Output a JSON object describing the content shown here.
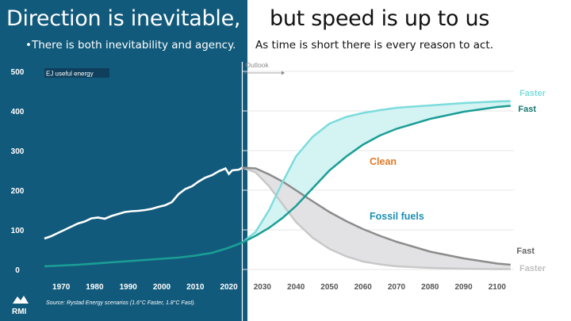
{
  "slide": {
    "title_left": "Direction is inevitable,",
    "title_right": "but speed is up to us",
    "subtitle_left": "•There is both inevitability and agency.",
    "subtitle_right": "As time is short there is every reason to act.",
    "source": "Source: Rystad Energy scenarios (1.6°C Faster, 1.8°C Fast).",
    "logo_text": "RMI"
  },
  "colors": {
    "panel": "#125a7b",
    "clean_fast": "#1a9e96",
    "clean_faster": "#7ddcdc",
    "clean_band": "#d4f3f3",
    "fossil_fast": "#8c8c8c",
    "fossil_faster": "#c8c8c8",
    "fossil_band": "#e2e2e4",
    "historical": "#ffffff",
    "label_clean": "#e07b29",
    "label_fossil": "#1e8fb4"
  },
  "chart_data": {
    "type": "line",
    "title": "",
    "ylabel": "EJ useful energy",
    "xlim": [
      1965,
      2105
    ],
    "ylim": [
      0,
      500
    ],
    "yticks": [
      0,
      100,
      200,
      300,
      400,
      500
    ],
    "xticks": [
      1970,
      1980,
      1990,
      2000,
      2010,
      2020,
      2030,
      2040,
      2050,
      2060,
      2070,
      2080,
      2090,
      2100
    ],
    "grid": true,
    "annotations": {
      "outlook": "Outlook",
      "clean": "Clean",
      "fossil_fuels": "Fossil fuels",
      "clean_faster": "Faster",
      "clean_fast": "Fast",
      "fossil_fast": "Fast",
      "fossil_faster": "Faster"
    },
    "historical_fossil": {
      "x": [
        1965,
        1967,
        1969,
        1971,
        1973,
        1975,
        1977,
        1979,
        1981,
        1983,
        1985,
        1987,
        1989,
        1991,
        1993,
        1995,
        1997,
        1999,
        2001,
        2003,
        2005,
        2007,
        2009,
        2011,
        2013,
        2015,
        2017,
        2019,
        2020,
        2021,
        2023,
        2024
      ],
      "y": [
        78,
        84,
        92,
        100,
        108,
        116,
        121,
        129,
        131,
        128,
        135,
        140,
        145,
        147,
        148,
        150,
        153,
        158,
        162,
        170,
        190,
        203,
        210,
        222,
        232,
        238,
        248,
        255,
        241,
        250,
        252,
        257
      ]
    },
    "historical_clean": {
      "x": [
        1965,
        1975,
        1985,
        1995,
        2005,
        2010,
        2015,
        2020,
        2024
      ],
      "y": [
        8,
        12,
        18,
        24,
        30,
        35,
        42,
        55,
        68
      ]
    },
    "series": [
      {
        "name": "Clean Faster",
        "x": [
          2024,
          2028,
          2032,
          2036,
          2040,
          2045,
          2050,
          2055,
          2060,
          2065,
          2070,
          2080,
          2090,
          2100,
          2104
        ],
        "y": [
          68,
          95,
          150,
          220,
          285,
          335,
          368,
          385,
          395,
          402,
          408,
          414,
          420,
          424,
          425
        ]
      },
      {
        "name": "Clean Fast",
        "x": [
          2024,
          2028,
          2032,
          2036,
          2040,
          2045,
          2050,
          2055,
          2060,
          2065,
          2070,
          2080,
          2090,
          2100,
          2104
        ],
        "y": [
          68,
          85,
          105,
          130,
          160,
          205,
          250,
          285,
          315,
          338,
          355,
          380,
          398,
          410,
          413
        ]
      },
      {
        "name": "Fossil Fast",
        "x": [
          2024,
          2028,
          2032,
          2036,
          2040,
          2045,
          2050,
          2055,
          2060,
          2065,
          2070,
          2080,
          2090,
          2100,
          2104
        ],
        "y": [
          257,
          255,
          240,
          222,
          200,
          172,
          145,
          122,
          102,
          85,
          70,
          45,
          28,
          15,
          12
        ]
      },
      {
        "name": "Fossil Faster",
        "x": [
          2024,
          2028,
          2032,
          2036,
          2040,
          2045,
          2050,
          2055,
          2060,
          2065,
          2070,
          2080,
          2090,
          2100,
          2104
        ],
        "y": [
          257,
          245,
          210,
          165,
          120,
          80,
          52,
          33,
          20,
          13,
          8,
          4,
          2,
          1,
          1
        ]
      }
    ]
  }
}
